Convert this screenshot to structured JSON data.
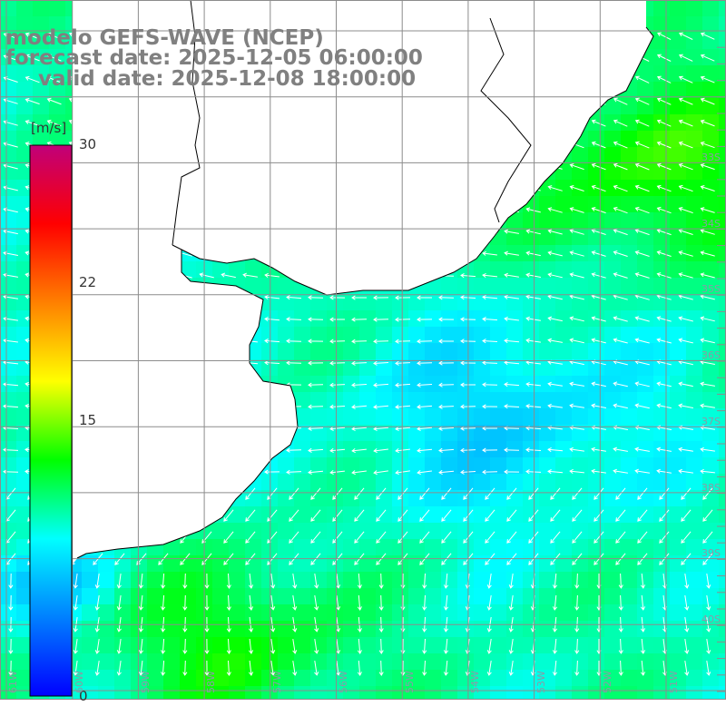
{
  "title": {
    "line1": "modelo GEFS-WAVE (NCEP)",
    "line2": "forecast date: 2025-12-05 06:00:00",
    "line3": "valid date: 2025-12-08 18:00:00"
  },
  "colorbar": {
    "unit": "[m/s]",
    "ticks": [
      "30",
      "22",
      "15",
      "0"
    ],
    "min": 0,
    "max": 30,
    "colors": [
      "#0000ff",
      "#0080ff",
      "#00ffff",
      "#00ff00",
      "#ffff00",
      "#ff8000",
      "#ff0000",
      "#c0007a"
    ]
  },
  "lat_labels": [
    "33S",
    "34S",
    "35S",
    "36S",
    "37S",
    "38S",
    "39S",
    "40S"
  ],
  "lon_labels": [
    "61W",
    "60W",
    "59W",
    "58W",
    "57W",
    "56W",
    "55W",
    "54W",
    "53W",
    "52W",
    "51W"
  ],
  "colors": {
    "land": "#ffffff",
    "coastline": "#000000",
    "grid": "#8c8c8c",
    "arrow": "#ffffff"
  }
}
